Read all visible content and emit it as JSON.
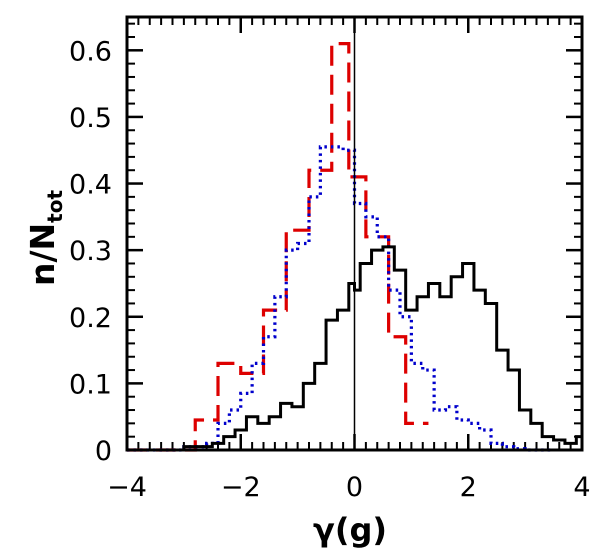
{
  "chart_data": {
    "type": "line",
    "step": true,
    "xlabel": "γ(g)",
    "ylabel": {
      "main": "n/N",
      "sub": "tot"
    },
    "xlim": [
      -4,
      4
    ],
    "ylim": [
      0,
      0.65
    ],
    "xticks": [
      -4,
      -2,
      0,
      2,
      4
    ],
    "xtick_labels": [
      "−4",
      "−2",
      "0",
      "2",
      "4"
    ],
    "yticks": [
      0,
      0.1,
      0.2,
      0.3,
      0.4,
      0.5,
      0.6
    ],
    "ytick_labels": [
      "0",
      "0.1",
      "0.2",
      "0.3",
      "0.4",
      "0.5",
      "0.6"
    ],
    "grid": false,
    "vline": {
      "x": 0,
      "color": "#000000"
    },
    "series": [
      {
        "style": "dashed",
        "color": "#dd0000",
        "bins": [
          -4.0,
          -3.6,
          -3.2,
          -2.8,
          -2.4,
          -2.0,
          -1.6,
          -1.2,
          -0.8,
          -0.4,
          -0.1,
          0.2,
          0.6,
          0.9,
          1.3
        ],
        "values": [
          0.0,
          0.0,
          0.0,
          0.045,
          0.13,
          0.115,
          0.21,
          0.33,
          0.42,
          0.61,
          0.41,
          0.32,
          0.17,
          0.04
        ]
      },
      {
        "style": "dotted",
        "color": "#0000cc",
        "bins": [
          -4.0,
          -3.0,
          -2.6,
          -2.4,
          -2.2,
          -2.0,
          -1.8,
          -1.6,
          -1.4,
          -1.2,
          -1.0,
          -0.8,
          -0.6,
          -0.4,
          -0.2,
          0.0,
          0.2,
          0.4,
          0.6,
          0.8,
          1.0,
          1.2,
          1.4,
          1.6,
          1.8,
          2.0,
          2.2,
          2.4,
          2.6,
          2.8,
          3.0,
          3.5
        ],
        "values": [
          0.0,
          0.005,
          0.01,
          0.04,
          0.06,
          0.085,
          0.13,
          0.17,
          0.23,
          0.3,
          0.31,
          0.38,
          0.455,
          0.455,
          0.45,
          0.37,
          0.35,
          0.32,
          0.24,
          0.2,
          0.13,
          0.12,
          0.06,
          0.065,
          0.045,
          0.04,
          0.03,
          0.01,
          0.005,
          0.002,
          0.0
        ]
      },
      {
        "style": "solid",
        "color": "#000000",
        "bins": [
          -4.0,
          -3.0,
          -2.5,
          -2.3,
          -2.1,
          -1.9,
          -1.7,
          -1.5,
          -1.3,
          -1.1,
          -0.9,
          -0.7,
          -0.5,
          -0.3,
          -0.1,
          0.0,
          0.1,
          0.3,
          0.5,
          0.7,
          0.9,
          1.1,
          1.3,
          1.5,
          1.7,
          1.9,
          2.1,
          2.3,
          2.5,
          2.7,
          2.9,
          3.1,
          3.3,
          3.5,
          3.7,
          3.9,
          4.0
        ],
        "values": [
          0.0,
          0.005,
          0.01,
          0.02,
          0.03,
          0.05,
          0.04,
          0.05,
          0.07,
          0.065,
          0.1,
          0.13,
          0.195,
          0.21,
          0.25,
          0.24,
          0.28,
          0.3,
          0.305,
          0.27,
          0.21,
          0.23,
          0.25,
          0.23,
          0.26,
          0.28,
          0.24,
          0.22,
          0.15,
          0.12,
          0.06,
          0.04,
          0.02,
          0.015,
          0.01,
          0.02
        ]
      }
    ]
  }
}
